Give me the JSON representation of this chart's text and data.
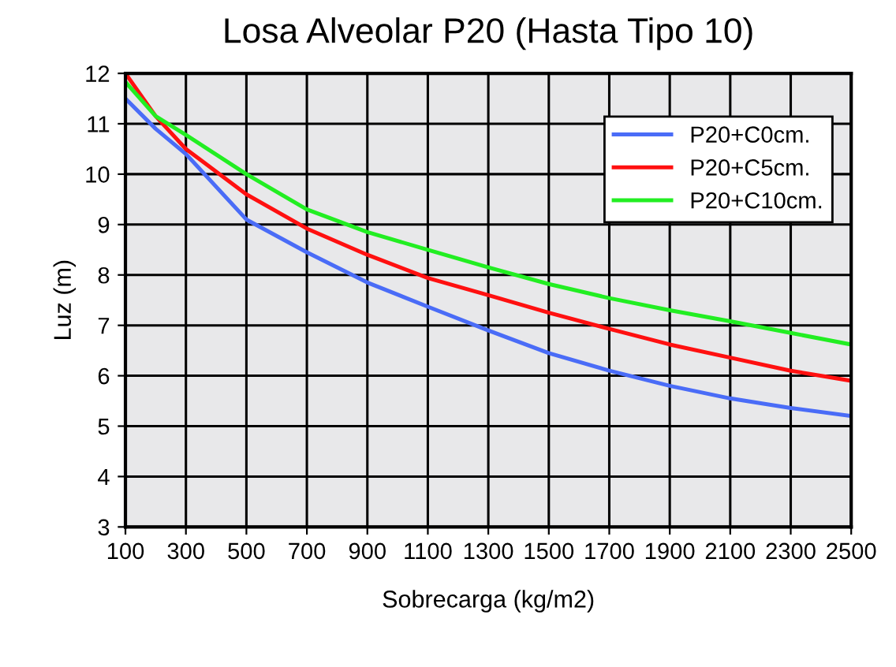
{
  "chart_data": {
    "type": "line",
    "title": "Losa Alveolar P20 (Hasta Tipo 10)",
    "xlabel": "Sobrecarga (kg/m2)",
    "ylabel": "Luz (m)",
    "x": [
      100,
      200,
      300,
      500,
      700,
      900,
      1100,
      1300,
      1500,
      1700,
      1900,
      2100,
      2300,
      2500
    ],
    "series": [
      {
        "name": "P20+C0cm.",
        "color": "#4a6cf7",
        "values": [
          11.5,
          10.9,
          10.4,
          9.1,
          8.45,
          7.85,
          7.37,
          6.9,
          6.45,
          6.1,
          5.8,
          5.55,
          5.36,
          5.2
        ]
      },
      {
        "name": "P20+C5cm.",
        "color": "#ff1010",
        "values": [
          12.0,
          11.15,
          10.5,
          9.6,
          8.92,
          8.4,
          7.94,
          7.6,
          7.25,
          6.93,
          6.62,
          6.36,
          6.1,
          5.9
        ]
      },
      {
        "name": "P20+C10cm.",
        "color": "#22ee22",
        "values": [
          11.83,
          11.15,
          10.78,
          10.0,
          9.3,
          8.85,
          8.5,
          8.15,
          7.82,
          7.54,
          7.3,
          7.08,
          6.85,
          6.62
        ]
      }
    ],
    "xlim": [
      100,
      2500
    ],
    "ylim": [
      3,
      12
    ],
    "xticks": [
      100,
      300,
      500,
      700,
      900,
      1100,
      1300,
      1500,
      1700,
      1900,
      2100,
      2300,
      2500
    ],
    "yticks": [
      3,
      4,
      5,
      6,
      7,
      8,
      9,
      10,
      11,
      12
    ],
    "grid": true,
    "legend": "top right",
    "marker": "none",
    "line_style": "solid"
  }
}
